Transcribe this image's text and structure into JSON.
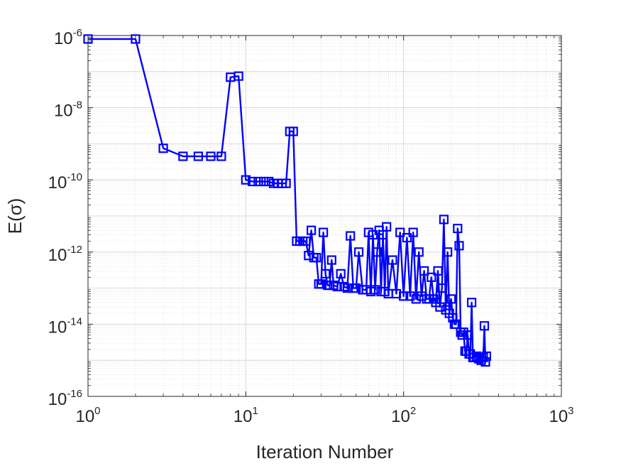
{
  "chart_data": {
    "type": "line",
    "xscale": "log",
    "yscale": "log",
    "xlim": [
      1,
      1000
    ],
    "ylim": [
      1e-16,
      1e-06
    ],
    "grid": "major-and-minor",
    "xlabel": "Iteration Number",
    "ylabel": "E(σ)",
    "x_ticks": [
      {
        "base": "10",
        "exp": "0",
        "value": 1
      },
      {
        "base": "10",
        "exp": "1",
        "value": 10
      },
      {
        "base": "10",
        "exp": "2",
        "value": 100
      },
      {
        "base": "10",
        "exp": "3",
        "value": 1000
      }
    ],
    "y_ticks": [
      {
        "base": "10",
        "exp": "-6",
        "value": 1e-06
      },
      {
        "base": "10",
        "exp": "-8",
        "value": 1e-08
      },
      {
        "base": "10",
        "exp": "-10",
        "value": 1e-10
      },
      {
        "base": "10",
        "exp": "-12",
        "value": 1e-12
      },
      {
        "base": "10",
        "exp": "-14",
        "value": 1e-14
      },
      {
        "base": "10",
        "exp": "-16",
        "value": 1e-16
      }
    ],
    "series": [
      {
        "color": "#0000ff",
        "marker": "square",
        "points": [
          [
            1,
            8e-07
          ],
          [
            2,
            8e-07
          ],
          [
            3,
            7.5e-10
          ],
          [
            4,
            4.5e-10
          ],
          [
            5,
            4.5e-10
          ],
          [
            6,
            4.5e-10
          ],
          [
            7,
            4.5e-10
          ],
          [
            8,
            7e-08
          ],
          [
            9,
            7.5e-08
          ],
          [
            10,
            1e-10
          ],
          [
            11,
            9e-11
          ],
          [
            12,
            9e-11
          ],
          [
            13,
            9e-11
          ],
          [
            14,
            9e-11
          ],
          [
            15,
            8e-11
          ],
          [
            16,
            8e-11
          ],
          [
            17,
            8e-11
          ],
          [
            18,
            8e-11
          ],
          [
            19,
            2.2e-09
          ],
          [
            20,
            2.2e-09
          ],
          [
            21,
            2e-12
          ],
          [
            22,
            2e-12
          ],
          [
            23,
            2e-12
          ],
          [
            24,
            2e-12
          ],
          [
            25,
            8e-13
          ],
          [
            26,
            4e-12
          ],
          [
            27,
            7e-13
          ],
          [
            28,
            7e-13
          ],
          [
            29,
            1.3e-13
          ],
          [
            30,
            1.3e-13
          ],
          [
            31,
            3.5e-12
          ],
          [
            32,
            2.5e-13
          ],
          [
            33,
            1.2e-13
          ],
          [
            34,
            1.2e-13
          ],
          [
            35,
            6e-13
          ],
          [
            36,
            1.2e-13
          ],
          [
            38,
            1.1e-13
          ],
          [
            40,
            2.5e-13
          ],
          [
            42,
            1.1e-13
          ],
          [
            44,
            1e-13
          ],
          [
            46,
            2.8e-12
          ],
          [
            48,
            1e-13
          ],
          [
            50,
            1e-13
          ],
          [
            52,
            1e-12
          ],
          [
            55,
            9e-14
          ],
          [
            58,
            9e-14
          ],
          [
            60,
            3.5e-12
          ],
          [
            62,
            8e-14
          ],
          [
            64,
            3e-12
          ],
          [
            66,
            9e-14
          ],
          [
            68,
            1e-12
          ],
          [
            70,
            4e-12
          ],
          [
            72,
            8e-14
          ],
          [
            74,
            3e-12
          ],
          [
            76,
            8e-14
          ],
          [
            78,
            5e-12
          ],
          [
            80,
            7e-14
          ],
          [
            85,
            6e-13
          ],
          [
            90,
            7e-14
          ],
          [
            95,
            3.5e-12
          ],
          [
            100,
            6e-14
          ],
          [
            105,
            2.5e-12
          ],
          [
            110,
            6e-14
          ],
          [
            115,
            3.5e-12
          ],
          [
            120,
            5e-14
          ],
          [
            125,
            1e-12
          ],
          [
            130,
            6e-14
          ],
          [
            135,
            3e-13
          ],
          [
            140,
            5e-14
          ],
          [
            145,
            5e-14
          ],
          [
            150,
            2e-13
          ],
          [
            155,
            5e-14
          ],
          [
            160,
            4e-14
          ],
          [
            165,
            3e-13
          ],
          [
            170,
            3e-14
          ],
          [
            175,
            1e-13
          ],
          [
            180,
            8e-12
          ],
          [
            185,
            2.5e-14
          ],
          [
            190,
            1e-12
          ],
          [
            195,
            2e-14
          ],
          [
            200,
            5e-14
          ],
          [
            205,
            1.5e-14
          ],
          [
            210,
            1e-14
          ],
          [
            215,
            1e-14
          ],
          [
            220,
            4.5e-12
          ],
          [
            225,
            1.5e-12
          ],
          [
            230,
            6e-15
          ],
          [
            235,
            5e-15
          ],
          [
            240,
            6e-15
          ],
          [
            245,
            1.8e-15
          ],
          [
            250,
            1.8e-15
          ],
          [
            255,
            5e-15
          ],
          [
            260,
            1.5e-15
          ],
          [
            265,
            1.5e-15
          ],
          [
            270,
            4e-14
          ],
          [
            275,
            1.2e-15
          ],
          [
            280,
            1.2e-15
          ],
          [
            290,
            1.3e-15
          ],
          [
            300,
            1.1e-15
          ],
          [
            310,
            1e-15
          ],
          [
            320,
            1.2e-15
          ],
          [
            325,
            9e-15
          ],
          [
            330,
            9e-16
          ],
          [
            335,
            1.3e-15
          ]
        ]
      }
    ]
  }
}
